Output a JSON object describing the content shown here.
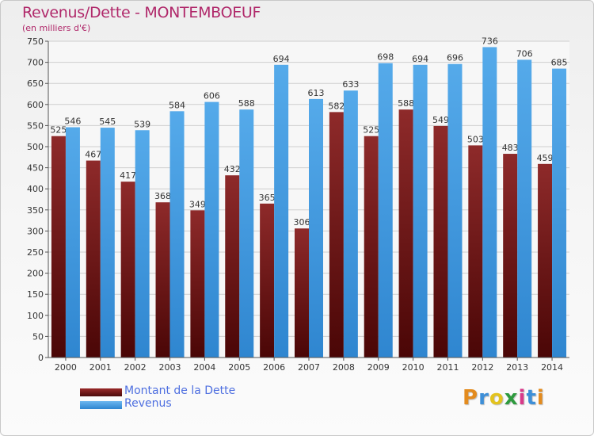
{
  "header": {
    "title": "Revenus/Dette - MONTEMBOEUF",
    "subtitle": "(en milliers d'€)"
  },
  "colors": {
    "accent": "#b0286a",
    "series_dette": "#7a1c1c",
    "series_revenus": "#4aa0e6",
    "legend_text": "#4e6fe0"
  },
  "chart_data": {
    "type": "bar",
    "title": "Revenus/Dette - MONTEMBOEUF",
    "ylabel": "(en milliers d'€)",
    "xlabel": "",
    "ylim": [
      0,
      750
    ],
    "yticks": [
      0,
      50,
      100,
      150,
      200,
      250,
      300,
      350,
      400,
      450,
      500,
      550,
      600,
      650,
      700,
      750
    ],
    "grid": true,
    "legend_position": "bottom-left",
    "categories": [
      "2000",
      "2001",
      "2002",
      "2003",
      "2004",
      "2005",
      "2006",
      "2007",
      "2008",
      "2009",
      "2010",
      "2011",
      "2012",
      "2013",
      "2014"
    ],
    "series": [
      {
        "name": "Montant de la Dette",
        "values": [
          525,
          467,
          417,
          368,
          349,
          432,
          365,
          306,
          582,
          525,
          588,
          549,
          503,
          483,
          459
        ]
      },
      {
        "name": "Revenus",
        "values": [
          546,
          545,
          539,
          584,
          606,
          588,
          694,
          613,
          633,
          698,
          694,
          696,
          736,
          706,
          685
        ]
      }
    ]
  },
  "legend": {
    "items": [
      {
        "label": "Montant de la Dette"
      },
      {
        "label": "Revenus"
      }
    ]
  },
  "logo": {
    "text": "Proxiti",
    "letters": [
      {
        "char": "P",
        "color": "#e38b1e"
      },
      {
        "char": "r",
        "color": "#3d8fd8"
      },
      {
        "char": "o",
        "color": "#e3c31e"
      },
      {
        "char": "x",
        "color": "#2e9a3e"
      },
      {
        "char": "i",
        "color": "#d83a8a"
      },
      {
        "char": "t",
        "color": "#3d8fd8"
      },
      {
        "char": "i",
        "color": "#e38b1e"
      }
    ]
  }
}
